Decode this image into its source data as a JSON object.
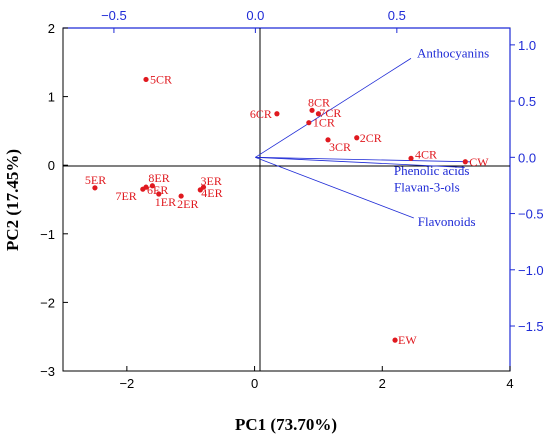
{
  "chart_data": {
    "type": "scatter",
    "subtype": "pca-biplot",
    "xlabel": "PC1 (73.70%)",
    "ylabel": "PC2 (17.45%)",
    "x_ticks": [
      "−2",
      "0",
      "2",
      "4"
    ],
    "y_ticks": [
      "−3",
      "−2",
      "−1",
      "0",
      "1",
      "2"
    ],
    "top_ticks": [
      "−0.5",
      "0.0",
      "0.5"
    ],
    "right_ticks": [
      "−1.5",
      "−1.0",
      "−0.5",
      "0.0",
      "0.5",
      "1.0"
    ],
    "xlim": [
      -3,
      4
    ],
    "ylim": [
      -3,
      2
    ],
    "loadings_xlim": [
      -0.68,
      0.9
    ],
    "loadings_ylim": [
      -1.9,
      1.15
    ],
    "point_color": "#e0191f",
    "vector_color": "#1f2bd6",
    "axis_color": "#1f2bd6",
    "scores": [
      {
        "name": "5CR",
        "x": -1.7,
        "y": 1.25
      },
      {
        "name": "8CR",
        "x": 0.9,
        "y": 0.8
      },
      {
        "name": "6CR",
        "x": 0.35,
        "y": 0.75
      },
      {
        "name": "7CR",
        "x": 1.0,
        "y": 0.75
      },
      {
        "name": "1CR",
        "x": 0.85,
        "y": 0.62
      },
      {
        "name": "2CR",
        "x": 1.6,
        "y": 0.4
      },
      {
        "name": "3CR",
        "x": 1.15,
        "y": 0.37
      },
      {
        "name": "4CR",
        "x": 2.45,
        "y": 0.1
      },
      {
        "name": "CW",
        "x": 3.3,
        "y": 0.05
      },
      {
        "name": "5ER",
        "x": -2.5,
        "y": -0.33
      },
      {
        "name": "8ER",
        "x": -1.6,
        "y": -0.3
      },
      {
        "name": "6ER",
        "x": -1.7,
        "y": -0.32
      },
      {
        "name": "7ER",
        "x": -1.75,
        "y": -0.35
      },
      {
        "name": "1ER",
        "x": -1.5,
        "y": -0.42
      },
      {
        "name": "2ER",
        "x": -1.15,
        "y": -0.45
      },
      {
        "name": "3ER",
        "x": -0.8,
        "y": -0.32
      },
      {
        "name": "4ER",
        "x": -0.85,
        "y": -0.36
      },
      {
        "name": "EW",
        "x": 2.2,
        "y": -2.55
      }
    ],
    "loadings": [
      {
        "name": "Anthocyanins",
        "x": 0.55,
        "y": 0.88
      },
      {
        "name": "Phenolic acids",
        "x": 0.76,
        "y": -0.04
      },
      {
        "name": "Flavan-3-ols",
        "x": 0.74,
        "y": -0.09
      },
      {
        "name": "Flavonoids",
        "x": 0.56,
        "y": -0.54
      }
    ]
  }
}
